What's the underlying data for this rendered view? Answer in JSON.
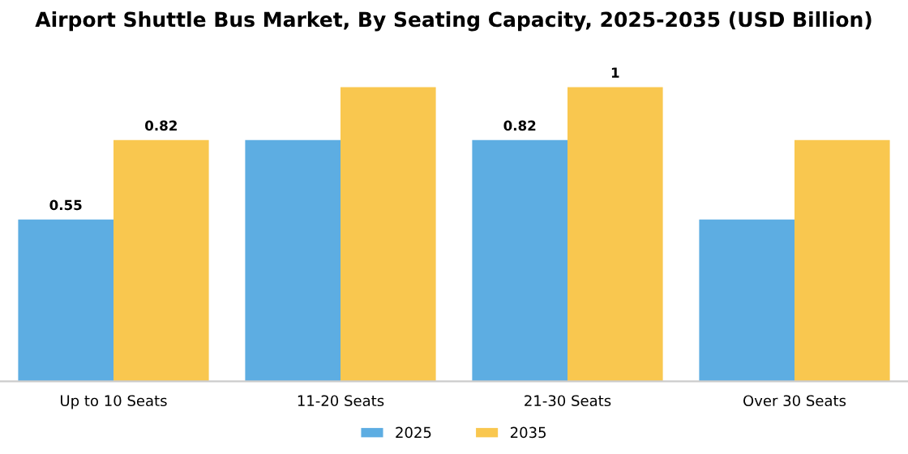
{
  "chart_data": {
    "type": "bar",
    "title": "Airport Shuttle Bus Market, By Seating Capacity, 2025-2035 (USD Billion)",
    "categories": [
      "Up to 10 Seats",
      "11-20 Seats",
      "21-30 Seats",
      "Over 30 Seats"
    ],
    "series": [
      {
        "name": "2025",
        "color": "#5dade2",
        "values": [
          0.55,
          0.82,
          0.82,
          0.55
        ],
        "value_labels": [
          "0.55",
          null,
          "0.82",
          null
        ]
      },
      {
        "name": "2035",
        "color": "#f9c74f",
        "values": [
          0.82,
          1.0,
          1.0,
          0.82
        ],
        "value_labels": [
          "0.82",
          null,
          "1",
          null
        ]
      }
    ],
    "legend": "bottom",
    "grid": false
  }
}
